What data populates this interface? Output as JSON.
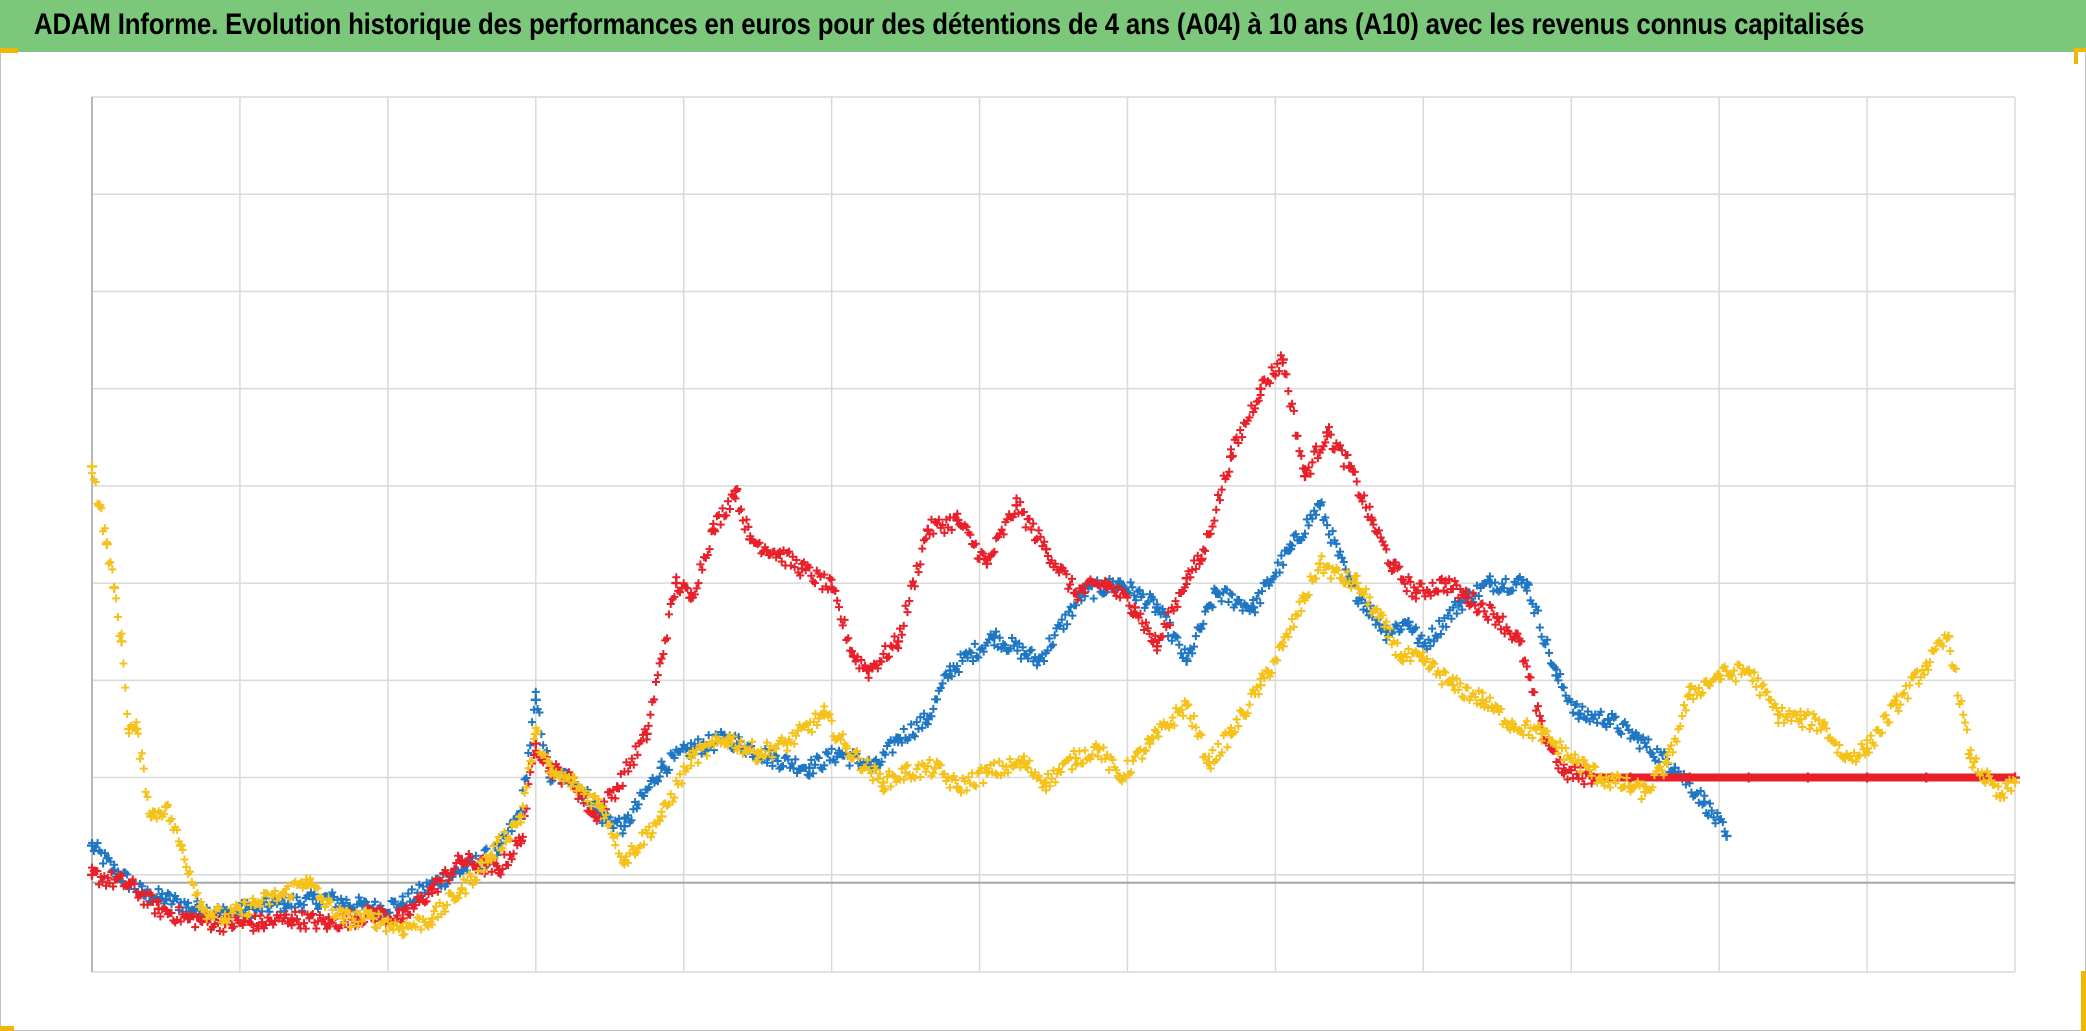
{
  "header": {
    "title": "ADAM Informe. Evolution historique des performances en euros pour des détentions de 4 ans (A04) à 10 ans (A10) avec les revenus connus capitalisés"
  },
  "colors": {
    "title_background": "#7cc87a",
    "grid": "#d9d9d9",
    "axis": "#a6a6a6",
    "corner_accent": "#f2b705"
  },
  "chart_data": {
    "type": "scatter",
    "marker": "cross",
    "title": "ADAM Informe. Evolution historique des performances en euros pour des détentions de 4 ans (A04) à 10 ans (A10) avec les revenus connus capitalisés",
    "xlabel": "",
    "ylabel": "",
    "xlim": [
      0,
      13
    ],
    "ylim": [
      -1,
      8
    ],
    "grid": true,
    "tick_labels_shown": false,
    "legend": "none",
    "series": [
      {
        "name": "série bleue",
        "color": "#1f77c4",
        "x": [
          0.0,
          0.15,
          0.35,
          0.5,
          0.7,
          0.9,
          1.1,
          1.3,
          1.6,
          1.9,
          2.1,
          2.3,
          2.5,
          2.75,
          2.9,
          3.0,
          3.1,
          3.25,
          3.45,
          3.6,
          3.85,
          4.05,
          4.3,
          4.6,
          4.85,
          5.05,
          5.3,
          5.45,
          5.65,
          5.8,
          6.1,
          6.4,
          6.7,
          6.95,
          7.2,
          7.4,
          7.6,
          7.85,
          8.1,
          8.3,
          8.5,
          8.75,
          8.9,
          9.0,
          9.25,
          9.45,
          9.7,
          9.9,
          10.05,
          10.25,
          10.45,
          10.7,
          10.9,
          11.05
        ],
        "y": [
          0.3,
          0.05,
          -0.2,
          -0.25,
          -0.35,
          -0.4,
          -0.35,
          -0.3,
          -0.25,
          -0.35,
          -0.3,
          -0.1,
          0.05,
          0.25,
          0.65,
          1.8,
          1.0,
          1.0,
          0.6,
          0.5,
          1.1,
          1.3,
          1.4,
          1.2,
          1.1,
          1.25,
          1.1,
          1.4,
          1.6,
          2.1,
          2.45,
          2.2,
          2.9,
          3.0,
          2.75,
          2.2,
          2.9,
          2.75,
          3.35,
          3.8,
          3.0,
          2.5,
          2.6,
          2.35,
          2.8,
          3.0,
          3.0,
          2.05,
          1.65,
          1.6,
          1.4,
          1.1,
          0.75,
          0.4
        ]
      },
      {
        "name": "série rouge",
        "color": "#e8202a",
        "x": [
          0.0,
          0.25,
          0.45,
          0.65,
          0.9,
          1.15,
          1.35,
          1.6,
          1.9,
          2.1,
          2.3,
          2.5,
          2.75,
          2.9,
          3.0,
          3.1,
          3.25,
          3.4,
          3.55,
          3.75,
          3.95,
          4.05,
          4.2,
          4.35,
          4.45,
          4.65,
          4.8,
          5.0,
          5.15,
          5.25,
          5.45,
          5.65,
          5.85,
          6.05,
          6.25,
          6.45,
          6.65,
          6.85,
          7.05,
          7.2,
          7.4,
          7.5,
          7.7,
          7.9,
          8.05,
          8.2,
          8.35,
          8.5,
          8.65,
          8.8,
          8.95,
          9.15,
          9.3,
          9.5,
          9.65,
          9.8,
          9.95,
          10.15,
          10.4,
          10.8,
          11.2,
          11.6,
          12.0,
          12.4,
          12.8,
          13.0
        ],
        "y": [
          0.0,
          -0.1,
          -0.35,
          -0.45,
          -0.5,
          -0.5,
          -0.45,
          -0.5,
          -0.4,
          -0.45,
          -0.15,
          0.15,
          0.05,
          0.35,
          1.35,
          1.1,
          0.95,
          0.6,
          0.9,
          1.45,
          3.0,
          2.85,
          3.55,
          3.95,
          3.45,
          3.3,
          3.15,
          2.95,
          2.25,
          2.1,
          2.4,
          3.55,
          3.65,
          3.2,
          3.8,
          3.35,
          2.9,
          3.0,
          2.75,
          2.35,
          3.05,
          3.25,
          4.3,
          5.0,
          5.3,
          4.1,
          4.55,
          4.2,
          3.65,
          3.15,
          2.9,
          3.0,
          2.85,
          2.65,
          2.4,
          1.5,
          1.05,
          1.0,
          1.0,
          1.0,
          1.0,
          1.0,
          1.0,
          1.0,
          1.0,
          1.0
        ]
      },
      {
        "name": "série jaune",
        "color": "#f5c21b",
        "x": [
          0.0,
          0.05,
          0.1,
          0.15,
          0.2,
          0.25,
          0.3,
          0.4,
          0.5,
          0.6,
          0.75,
          0.9,
          1.1,
          1.3,
          1.45,
          1.55,
          1.7,
          1.9,
          2.1,
          2.3,
          2.5,
          2.7,
          2.9,
          3.0,
          3.1,
          3.25,
          3.45,
          3.6,
          3.85,
          4.05,
          4.3,
          4.5,
          4.7,
          4.95,
          5.1,
          5.35,
          5.5,
          5.7,
          5.85,
          6.05,
          6.3,
          6.45,
          6.65,
          6.8,
          6.95,
          7.15,
          7.4,
          7.55,
          7.7,
          7.9,
          8.05,
          8.2,
          8.3,
          8.45,
          8.55,
          8.7,
          8.85,
          9.0,
          9.2,
          9.4,
          9.6,
          9.8,
          10.0,
          10.2,
          10.4,
          10.5,
          10.65,
          10.8,
          11.0,
          11.2,
          11.4,
          11.55,
          11.7,
          11.85,
          12.0,
          12.2,
          12.4,
          12.55,
          12.7,
          12.9,
          13.0
        ],
        "y": [
          4.2,
          3.8,
          3.4,
          2.95,
          2.4,
          1.5,
          1.5,
          0.6,
          0.7,
          0.3,
          -0.35,
          -0.45,
          -0.3,
          -0.2,
          -0.05,
          -0.25,
          -0.45,
          -0.45,
          -0.55,
          -0.45,
          -0.15,
          0.2,
          0.6,
          1.45,
          1.05,
          0.95,
          0.7,
          0.15,
          0.6,
          1.2,
          1.4,
          1.25,
          1.35,
          1.65,
          1.3,
          0.95,
          1.05,
          1.1,
          0.9,
          1.05,
          1.15,
          0.95,
          1.2,
          1.3,
          1.0,
          1.35,
          1.75,
          1.15,
          1.45,
          1.95,
          2.35,
          2.85,
          3.2,
          3.05,
          3.0,
          2.65,
          2.25,
          2.2,
          1.95,
          1.8,
          1.55,
          1.45,
          1.2,
          1.0,
          0.9,
          0.85,
          1.15,
          1.85,
          2.05,
          2.1,
          1.65,
          1.6,
          1.55,
          1.2,
          1.3,
          1.75,
          2.15,
          2.45,
          1.2,
          0.8,
          0.95
        ]
      }
    ]
  }
}
